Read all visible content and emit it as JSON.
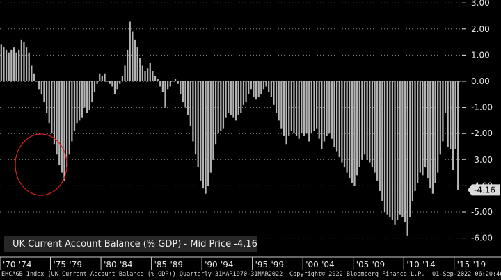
{
  "chart_data": {
    "type": "bar",
    "title": "",
    "xlabel": "",
    "ylabel": "",
    "ylim": [
      -6.5,
      3.2
    ],
    "y_axis_side": "right",
    "yticks": [
      "3.00",
      "2.00",
      "1.00",
      "0.00",
      "-1.00",
      "-2.00",
      "-3.00",
      "-4.00",
      "-5.00",
      "-6.00"
    ],
    "ytick_values": [
      3,
      2,
      1,
      0,
      -1,
      -2,
      -3,
      -4,
      -5,
      -6
    ],
    "xticks": [
      "'70-'74",
      "'75-'79",
      "'80-'84",
      "'85-'89",
      "'90-'94",
      "'95-'99",
      "'00-'04",
      "'05-'09",
      "'10-'14",
      "'15-'19"
    ],
    "x_range": [
      "1970 Q1",
      "2022 Q1"
    ],
    "frequency": "quarterly",
    "last_value_label": "-4.16",
    "series": [
      {
        "name": "UK Current Account Balance (% GDP)",
        "color": "#b4b4b4",
        "values": [
          1.4,
          1.3,
          1.2,
          1.1,
          1.2,
          1.3,
          1.1,
          1.2,
          1.6,
          1.5,
          1.3,
          1.1,
          0.6,
          0.3,
          0.0,
          -0.3,
          -0.5,
          -0.8,
          -1.2,
          -1.6,
          -2.0,
          -2.4,
          -2.8,
          -3.2,
          -3.5,
          -3.8,
          -3.3,
          -2.8,
          -2.3,
          -1.9,
          -1.6,
          -1.5,
          -1.4,
          -1.0,
          -1.2,
          -1.1,
          -0.8,
          -0.4,
          -0.1,
          0.3,
          0.2,
          0.3,
          0.0,
          -0.1,
          -0.2,
          -0.5,
          -0.3,
          -0.1,
          0.2,
          0.6,
          1.2,
          2.3,
          1.9,
          1.6,
          1.3,
          0.9,
          0.6,
          0.4,
          0.5,
          0.7,
          0.4,
          0.2,
          0.1,
          -0.2,
          -0.4,
          -1.0,
          -0.3,
          -0.2,
          0.0,
          0.1,
          -0.1,
          -0.5,
          -0.8,
          -1.0,
          -1.3,
          -1.7,
          -2.3,
          -2.8,
          -3.3,
          -3.8,
          -4.1,
          -4.3,
          -4.0,
          -3.5,
          -3.0,
          -2.4,
          -2.0,
          -1.9,
          -1.8,
          -1.4,
          -1.2,
          -1.3,
          -1.4,
          -1.5,
          -1.3,
          -1.2,
          -0.9,
          -0.8,
          -0.5,
          -0.3,
          -0.6,
          -0.7,
          -0.6,
          -0.5,
          -0.3,
          -0.2,
          -0.4,
          -0.6,
          -0.9,
          -1.2,
          -1.5,
          -1.8,
          -2.1,
          -2.4,
          -2.1,
          -1.9,
          -2.0,
          -2.1,
          -2.2,
          -2.0,
          -2.1,
          -2.0,
          -2.3,
          -2.0,
          -1.9,
          -1.8,
          -2.2,
          -2.6,
          -2.3,
          -2.1,
          -2.0,
          -2.2,
          -2.5,
          -2.7,
          -2.9,
          -3.1,
          -3.3,
          -3.5,
          -3.7,
          -3.9,
          -4.0,
          -3.6,
          -3.3,
          -3.0,
          -2.8,
          -3.0,
          -3.1,
          -3.3,
          -3.5,
          -3.8,
          -4.2,
          -4.6,
          -5.0,
          -5.1,
          -5.2,
          -5.3,
          -5.5,
          -5.3,
          -5.1,
          -5.2,
          -5.4,
          -5.9,
          -5.2,
          -4.6,
          -4.2,
          -3.9,
          -3.5,
          -3.6,
          -3.3,
          -3.7,
          -4.1,
          -4.3,
          -3.9,
          -3.5,
          -2.8,
          -2.3,
          -1.2,
          -2.5,
          -2.6,
          -3.4,
          -2.6,
          -4.16
        ]
      }
    ]
  },
  "legend": {
    "text": "UK Current Account Balance (% GDP) - Mid Price -4.16"
  },
  "footer": {
    "left": "EHCAGB Index (UK Current Account Balance (% GDP))  Quarterly 31MAR1970-31MAR2022",
    "center": "Copyright© 2022 Bloomberg Finance L.P.",
    "right": "01-Sep-2022 06:20:46"
  },
  "colors": {
    "background": "#000000",
    "bar": "#b4b4b4",
    "last_value_badge": "#dcdcdc",
    "annotation_circle": "#e02020"
  }
}
